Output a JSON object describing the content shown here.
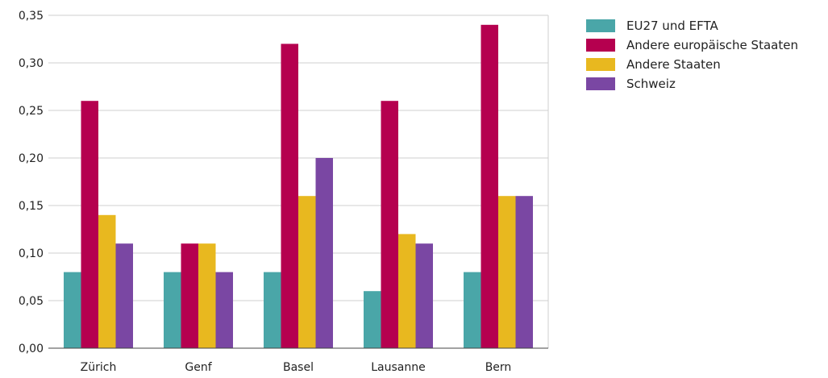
{
  "chart_data": {
    "type": "bar",
    "categories": [
      "Zürich",
      "Genf",
      "Basel",
      "Lausanne",
      "Bern"
    ],
    "series": [
      {
        "name": "EU27 und EFTA",
        "color": "#4aa6a8",
        "values": [
          0.08,
          0.08,
          0.08,
          0.06,
          0.08
        ]
      },
      {
        "name": "Andere europäische Staaten",
        "color": "#b5004f",
        "values": [
          0.26,
          0.11,
          0.32,
          0.26,
          0.34
        ]
      },
      {
        "name": "Andere Staaten",
        "color": "#e8b81f",
        "values": [
          0.14,
          0.11,
          0.16,
          0.12,
          0.16
        ]
      },
      {
        "name": "Schweiz",
        "color": "#7a47a3",
        "values": [
          0.11,
          0.08,
          0.2,
          0.11,
          0.16
        ]
      }
    ],
    "yticks": [
      "0,00",
      "0,05",
      "0,10",
      "0,15",
      "0,20",
      "0,25",
      "0,30",
      "0,35"
    ],
    "ylim": [
      0,
      0.35
    ],
    "grid": true,
    "legend_position": "right",
    "title": "",
    "xlabel": "",
    "ylabel": ""
  }
}
